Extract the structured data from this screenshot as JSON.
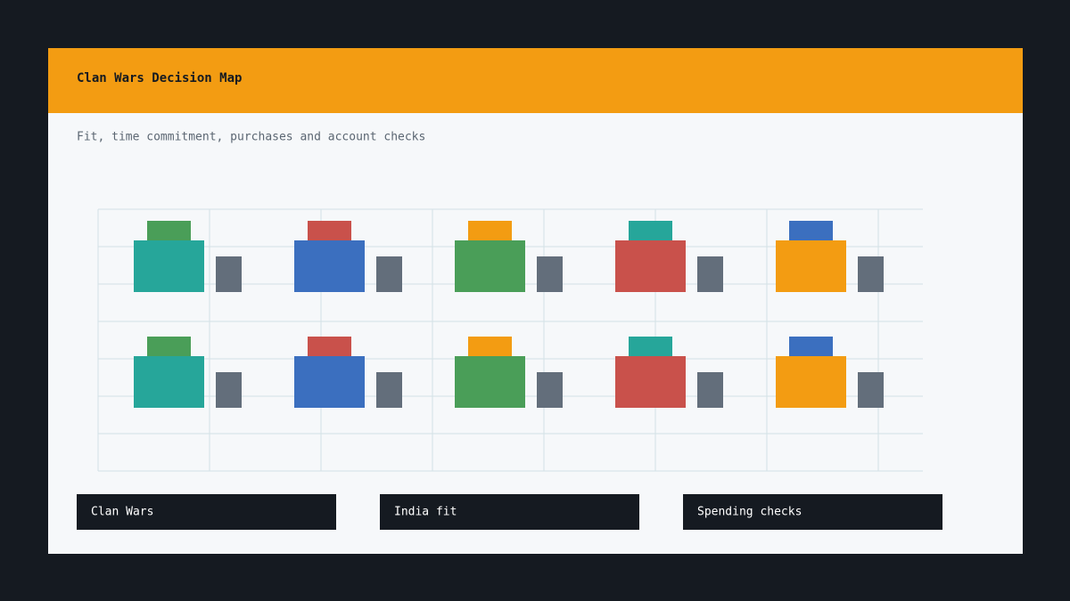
{
  "header": {
    "title": "Clan Wars Decision Map"
  },
  "subtitle": "Fit, time commitment, purchases and account checks",
  "labels": [
    "Clan Wars",
    "India fit",
    "Spending checks"
  ]
}
